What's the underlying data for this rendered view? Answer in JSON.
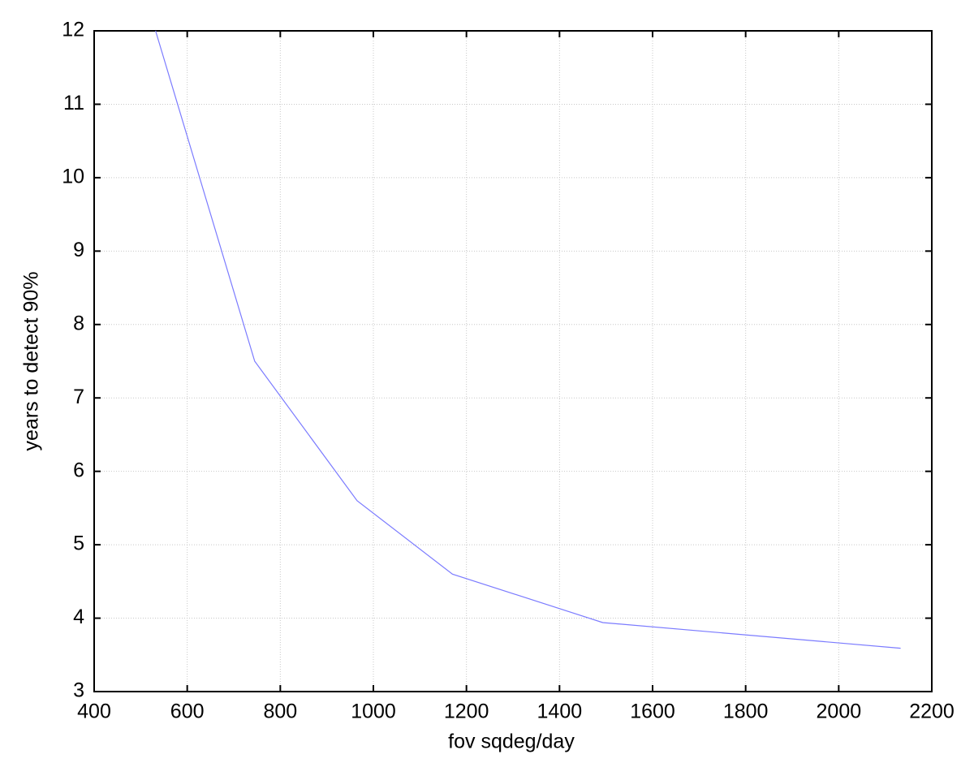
{
  "chart_data": {
    "type": "line",
    "xlabel": "fov  sqdeg/day",
    "ylabel": "years to detect 90%",
    "x": [
      532,
      745,
      965,
      1170,
      1493,
      2133
    ],
    "series": [
      {
        "color": "#7b7bff",
        "values": [
          12,
          7.5,
          5.6,
          4.6,
          3.94,
          3.59
        ]
      }
    ],
    "xlim": [
      400,
      2200
    ],
    "xticks": [
      400,
      600,
      800,
      1000,
      1200,
      1400,
      1600,
      1800,
      2000,
      2200
    ],
    "ylim": [
      3,
      12
    ],
    "yticks": [
      3,
      4,
      5,
      6,
      7,
      8,
      9,
      10,
      11,
      12
    ],
    "grid": true
  }
}
